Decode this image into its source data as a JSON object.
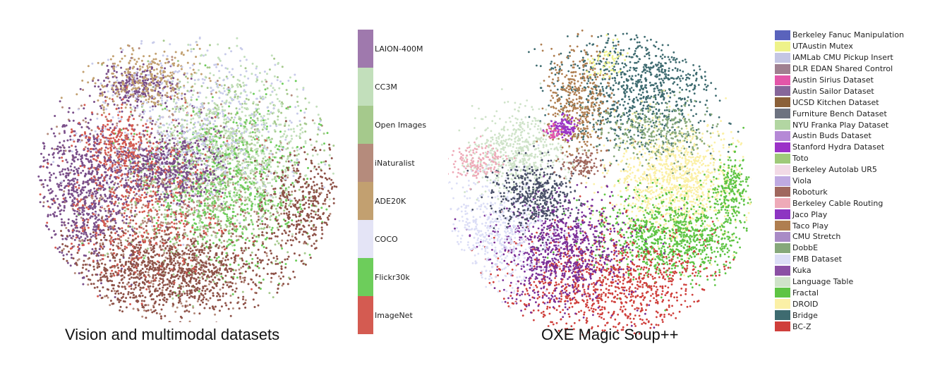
{
  "chart_data": [
    {
      "type": "scatter",
      "title": "Vision and multimodal datasets",
      "series": [
        {
          "name": "LAION-400M",
          "color": "#9f79ad"
        },
        {
          "name": "CC3M",
          "color": "#c2dfbb"
        },
        {
          "name": "Open Images",
          "color": "#a5c98c"
        },
        {
          "name": "iNaturalist",
          "color": "#b58b7c"
        },
        {
          "name": "ADE20K",
          "color": "#c2a070"
        },
        {
          "name": "COCO",
          "color": "#e4e4f6"
        },
        {
          "name": "Flickr30k",
          "color": "#6dcd5b"
        },
        {
          "name": "ImageNet",
          "color": "#d45b51"
        }
      ],
      "legend_type": "colorbar",
      "legend_placement": "right"
    },
    {
      "type": "scatter",
      "title": "OXE Magic Soup++",
      "series": [
        {
          "name": "Berkeley Fanuc Manipulation",
          "color": "#5a63bc"
        },
        {
          "name": "UTAustin Mutex",
          "color": "#eef28a"
        },
        {
          "name": "IAMLab CMU Pickup Insert",
          "color": "#c4c6e4"
        },
        {
          "name": "DLR EDAN Shared Control",
          "color": "#a08090"
        },
        {
          "name": "Austin Sirius Dataset",
          "color": "#e356a9"
        },
        {
          "name": "Austin Sailor Dataset",
          "color": "#86669a"
        },
        {
          "name": "UCSD Kitchen Dataset",
          "color": "#8b6038"
        },
        {
          "name": "Furniture Bench Dataset",
          "color": "#6d7380"
        },
        {
          "name": "NYU Franka Play Dataset",
          "color": "#b2d6a2"
        },
        {
          "name": "Austin Buds Dataset",
          "color": "#b589d6"
        },
        {
          "name": "Stanford Hydra Dataset",
          "color": "#9b32c8"
        },
        {
          "name": "Toto",
          "color": "#9fca79"
        },
        {
          "name": "Berkeley Autolab UR5",
          "color": "#f2dae6"
        },
        {
          "name": "Viola",
          "color": "#bfaae2"
        },
        {
          "name": "Roboturk",
          "color": "#a0675e"
        },
        {
          "name": "Berkeley Cable Routing",
          "color": "#eeaab8"
        },
        {
          "name": "Jaco Play",
          "color": "#8d35c2"
        },
        {
          "name": "Taco Play",
          "color": "#af7e50"
        },
        {
          "name": "CMU Stretch",
          "color": "#a98bc6"
        },
        {
          "name": "DobbE",
          "color": "#86a87a"
        },
        {
          "name": "FMB Dataset",
          "color": "#dcdef6"
        },
        {
          "name": "Kuka",
          "color": "#8b50a4"
        },
        {
          "name": "Language Table",
          "color": "#cfe3c9"
        },
        {
          "name": "Fractal",
          "color": "#5ec444"
        },
        {
          "name": "DROID",
          "color": "#fbf0a6"
        },
        {
          "name": "Bridge",
          "color": "#3e6b70"
        },
        {
          "name": "BC-Z",
          "color": "#cf3f3b"
        }
      ],
      "legend_placement": "right"
    }
  ]
}
